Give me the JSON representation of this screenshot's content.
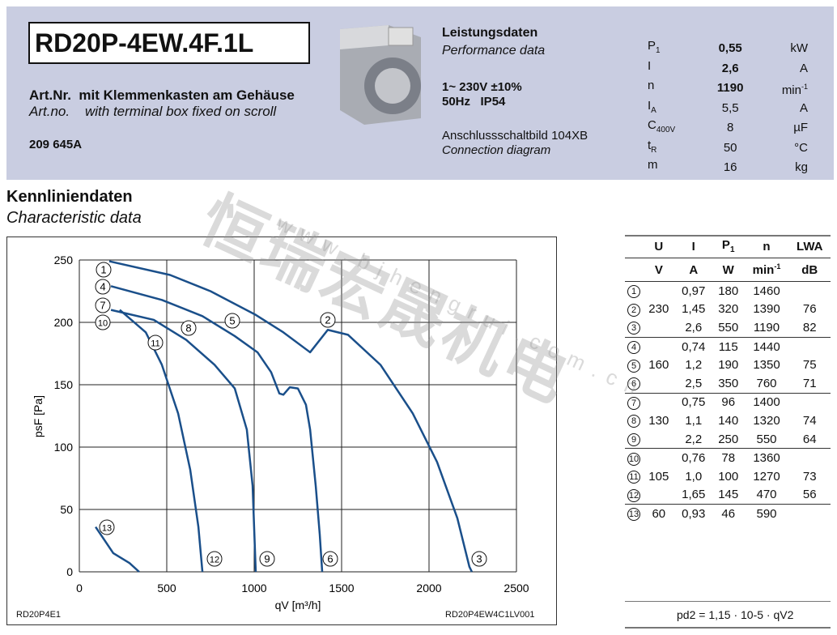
{
  "header": {
    "model": "RD20P-4EW.4F.1L",
    "artnr_label_de": "Art.Nr.",
    "artnr_desc_de": "mit Klemmenkasten am Gehäuse",
    "artnr_label_en": "Art.no.",
    "artnr_desc_en": "with terminal box fixed on scroll",
    "artnr": "209 645A",
    "perf_title_de": "Leistungsdaten",
    "perf_title_en": "Performance data",
    "supply": "1~ 230V ±10%",
    "freq_ip": "50Hz   IP54",
    "conn_de": "Anschlussschaltbild 104XB",
    "conn_en": "Connection diagram",
    "specs": [
      {
        "sym": "P",
        "sub": "1",
        "val": "0,55",
        "unit": "kW",
        "bold": true
      },
      {
        "sym": "I",
        "sub": "",
        "val": "2,6",
        "unit": "A",
        "bold": true
      },
      {
        "sym": "n",
        "sub": "",
        "val": "1190",
        "unit": "min-1",
        "bold": true
      },
      {
        "sym": "I",
        "sub": "A",
        "val": "5,5",
        "unit": "A"
      },
      {
        "sym": "C",
        "sub": "400V",
        "val": "8",
        "unit": "µF"
      },
      {
        "sym": "t",
        "sub": "R",
        "val": "50",
        "unit": "°C"
      },
      {
        "sym": "m",
        "sub": "",
        "val": "16",
        "unit": "kg"
      }
    ]
  },
  "section": {
    "title_de": "Kennliniendaten",
    "title_en": "Characteristic data"
  },
  "watermark": {
    "cn": "恒瑞宏晟机电",
    "url": "www.bjhengrui.com.cn"
  },
  "chart_data": {
    "type": "line",
    "xlabel": "qV [m³/h]",
    "ylabel": "psF [Pa]",
    "xlim": [
      0,
      2500
    ],
    "ylim": [
      0,
      250
    ],
    "grid": true,
    "xticks": [
      "0",
      "500",
      "1000",
      "1500",
      "2000",
      "2500"
    ],
    "yticks": [
      "0",
      "50",
      "100",
      "150",
      "200",
      "250"
    ],
    "code_left": "RD20P4E1",
    "code_right": "RD20P4EW4C1LV001",
    "line_color": "#1a4f8a",
    "series": [
      {
        "name": "1-2-3",
        "values": [
          [
            171,
            249
          ],
          [
            519,
            238
          ],
          [
            750,
            225
          ],
          [
            1009,
            206
          ],
          [
            1167,
            192
          ],
          [
            1320,
            176
          ],
          [
            1421,
            194
          ],
          [
            1537,
            190
          ],
          [
            1722,
            166
          ],
          [
            1907,
            127
          ],
          [
            2046,
            88
          ],
          [
            2162,
            43
          ],
          [
            2231,
            4
          ],
          [
            2245,
            0
          ]
        ]
      },
      {
        "name": "4-5-6",
        "values": [
          [
            181,
            229
          ],
          [
            472,
            218
          ],
          [
            704,
            205
          ],
          [
            889,
            189
          ],
          [
            1019,
            176
          ],
          [
            1097,
            160
          ],
          [
            1144,
            143
          ],
          [
            1167,
            142
          ],
          [
            1204,
            148
          ],
          [
            1250,
            147
          ],
          [
            1296,
            134
          ],
          [
            1320,
            114
          ],
          [
            1352,
            69
          ],
          [
            1375,
            30
          ],
          [
            1389,
            0
          ]
        ]
      },
      {
        "name": "7-8-9",
        "values": [
          [
            181,
            210
          ],
          [
            426,
            202
          ],
          [
            611,
            186
          ],
          [
            773,
            166
          ],
          [
            889,
            147
          ],
          [
            958,
            114
          ],
          [
            991,
            69
          ],
          [
            1009,
            0
          ]
        ]
      },
      {
        "name": "10-11-12",
        "values": [
          [
            231,
            210
          ],
          [
            380,
            192
          ],
          [
            472,
            166
          ],
          [
            565,
            127
          ],
          [
            634,
            82
          ],
          [
            681,
            36
          ],
          [
            704,
            0
          ]
        ]
      },
      {
        "name": "13",
        "values": [
          [
            93,
            36
          ],
          [
            194,
            15
          ],
          [
            287,
            7
          ],
          [
            342,
            0
          ]
        ]
      }
    ],
    "markers": [
      "1",
      "2",
      "3",
      "4",
      "5",
      "6",
      "7",
      "8",
      "9",
      "10",
      "11",
      "12",
      "13"
    ]
  },
  "table": {
    "headers": [
      "U",
      "I",
      "P1",
      "n",
      "LWA"
    ],
    "units": [
      "V",
      "A",
      "W",
      "min-1",
      "dB"
    ],
    "rows": [
      [
        "1",
        "",
        "0,97",
        "180",
        "1460",
        ""
      ],
      [
        "2",
        "230",
        "1,45",
        "320",
        "1390",
        "76"
      ],
      [
        "3",
        "",
        "2,6",
        "550",
        "1190",
        "82"
      ],
      [
        "4",
        "",
        "0,74",
        "115",
        "1440",
        ""
      ],
      [
        "5",
        "160",
        "1,2",
        "190",
        "1350",
        "75"
      ],
      [
        "6",
        "",
        "2,5",
        "350",
        "760",
        "71"
      ],
      [
        "7",
        "",
        "0,75",
        "96",
        "1400",
        ""
      ],
      [
        "8",
        "130",
        "1,1",
        "140",
        "1320",
        "74"
      ],
      [
        "9",
        "",
        "2,2",
        "250",
        "550",
        "64"
      ],
      [
        "10",
        "",
        "0,76",
        "78",
        "1360",
        ""
      ],
      [
        "11",
        "105",
        "1,0",
        "100",
        "1270",
        "73"
      ],
      [
        "12",
        "",
        "1,65",
        "145",
        "470",
        "56"
      ],
      [
        "13",
        "60",
        "0,93",
        "46",
        "590",
        ""
      ]
    ],
    "formula": "pd2 = 1,15 · 10-5 · qV2"
  }
}
